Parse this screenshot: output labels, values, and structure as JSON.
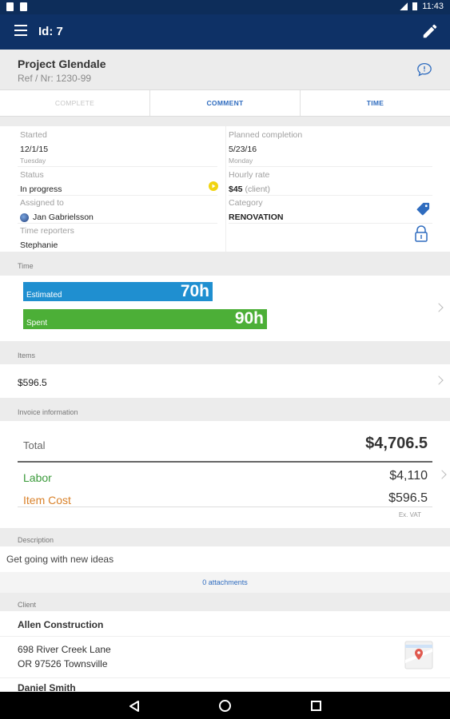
{
  "status_bar": {
    "time": "11:43"
  },
  "appbar": {
    "title": "Id: 7"
  },
  "project": {
    "title": "Project Glendale",
    "ref": "Ref / Nr: 1230-99"
  },
  "tabs": [
    {
      "label": "COMPLETE",
      "state": "disabled"
    },
    {
      "label": "COMMENT",
      "state": "active"
    },
    {
      "label": "TIME",
      "state": "active"
    }
  ],
  "details": {
    "started": {
      "label": "Started",
      "value": "12/1/15",
      "sub": "Tuesday"
    },
    "planned": {
      "label": "Planned completion",
      "value": "5/23/16",
      "sub": "Monday"
    },
    "status": {
      "label": "Status",
      "value": "In progress"
    },
    "rate": {
      "label": "Hourly rate",
      "value": "$45",
      "suffix": "(client)"
    },
    "assigned": {
      "label": "Assigned to",
      "value": "Jan Gabrielsson"
    },
    "category": {
      "label": "Category",
      "value": "RENOVATION"
    },
    "reporters": {
      "label": "Time reporters",
      "value": "Stephanie"
    }
  },
  "time": {
    "section_label": "Time",
    "estimated": {
      "label": "Estimated",
      "value": "70h",
      "hours": 70,
      "color": "#1f8fd0"
    },
    "spent": {
      "label": "Spent",
      "value": "90h",
      "hours": 90,
      "color": "#4caf37"
    }
  },
  "items": {
    "section_label": "Items",
    "value": "$596.5"
  },
  "invoice": {
    "section_label": "Invoice information",
    "total_label": "Total",
    "total_value": "$4,706.5",
    "labor_label": "Labor",
    "labor_value": "$4,110",
    "itemcost_label": "Item Cost",
    "itemcost_value": "$596.5",
    "vat_note": "Ex. VAT",
    "colors": {
      "labor": "#3a9a3a",
      "item_cost": "#d9822b"
    }
  },
  "description": {
    "section_label": "Description",
    "text": "Get going with new ideas",
    "attachments": "0 attachments"
  },
  "client": {
    "section_label": "Client",
    "name": "Allen Construction",
    "address_line1": "698 River Creek Lane",
    "address_line2": "OR 97526 Townsville",
    "contact": "Daniel Smith"
  }
}
